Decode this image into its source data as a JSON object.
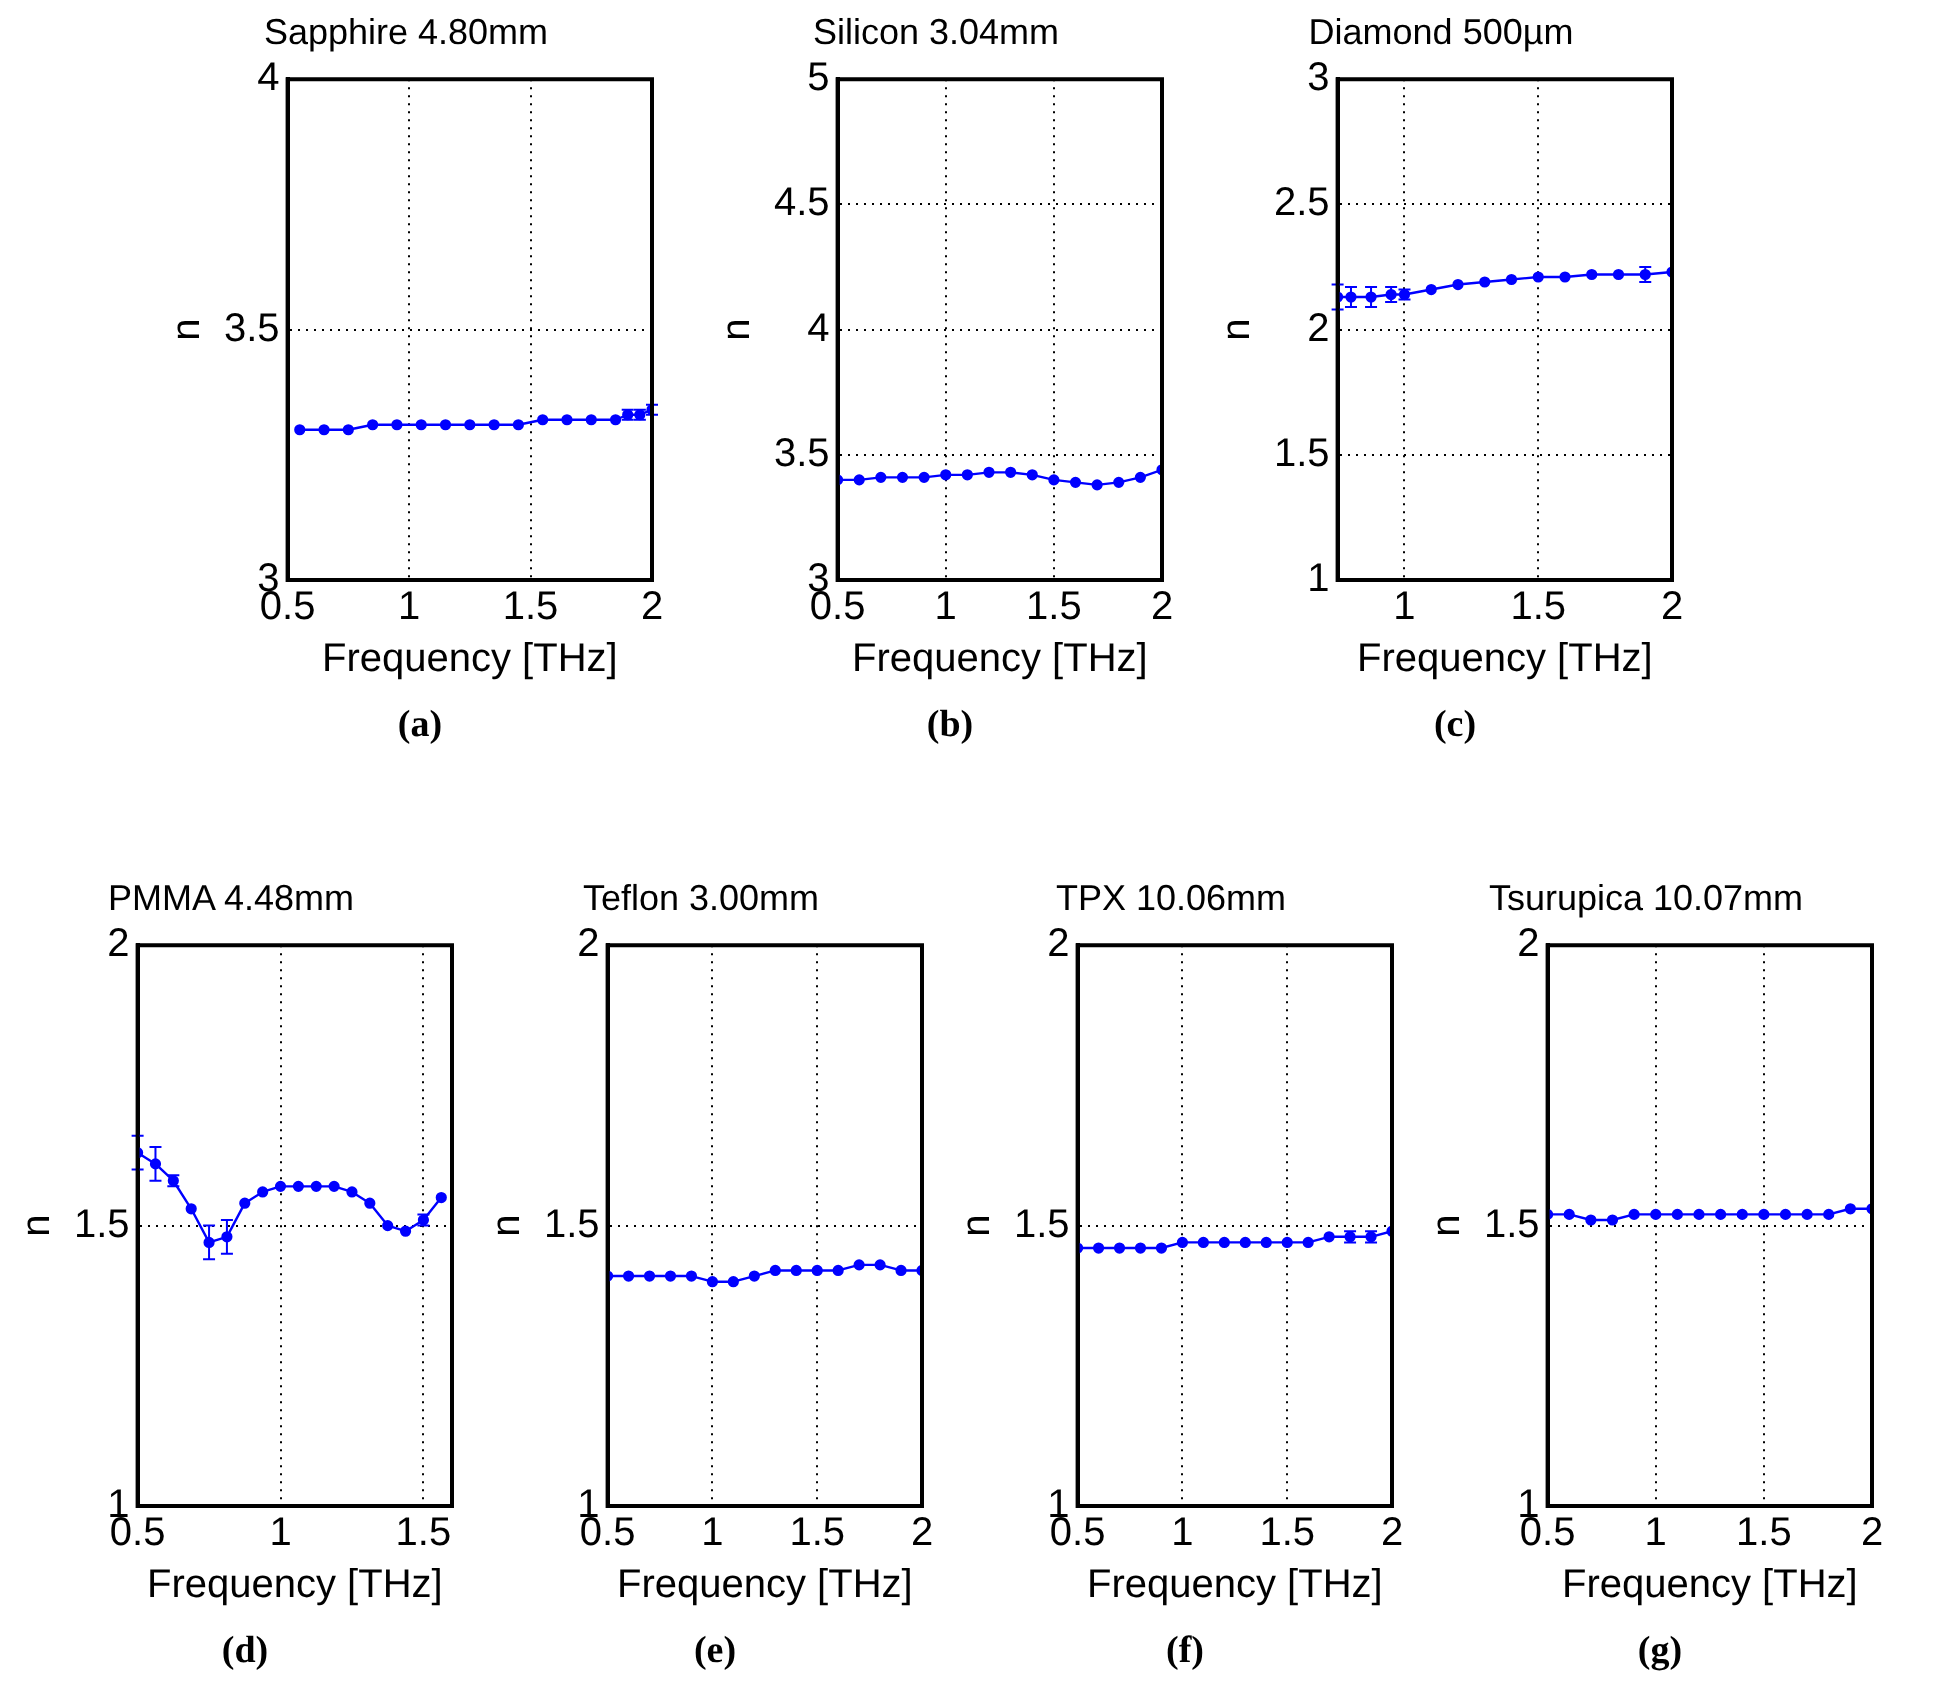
{
  "chart_data": [
    {
      "type": "line",
      "title": "Sapphire 4.80mm",
      "xlabel": "Frequency [THz]",
      "ylabel": "n",
      "annotations": [
        "(a)"
      ],
      "xlim": [
        0.5,
        2
      ],
      "xticks": [
        0.5,
        1,
        1.5,
        2
      ],
      "ylim": [
        3,
        4
      ],
      "yticks": [
        3,
        3.5,
        4
      ],
      "grid": true,
      "legend": false,
      "marker": "circle",
      "series": [
        {
          "color": "#0000ff",
          "x": [
            0.55,
            0.65,
            0.75,
            0.85,
            0.95,
            1.05,
            1.15,
            1.25,
            1.35,
            1.45,
            1.55,
            1.65,
            1.75,
            1.85,
            1.9,
            1.95,
            2.0
          ],
          "values": [
            3.3,
            3.3,
            3.3,
            3.31,
            3.31,
            3.31,
            3.31,
            3.31,
            3.31,
            3.31,
            3.32,
            3.32,
            3.32,
            3.32,
            3.33,
            3.33,
            3.34
          ],
          "errors": [
            null,
            null,
            null,
            null,
            null,
            null,
            null,
            null,
            null,
            null,
            null,
            null,
            null,
            null,
            0.01,
            0.01,
            0.01
          ]
        }
      ]
    },
    {
      "type": "line",
      "title": "Silicon 3.04mm",
      "xlabel": "Frequency [THz]",
      "ylabel": "n",
      "annotations": [
        "(b)"
      ],
      "xlim": [
        0.5,
        2
      ],
      "xticks": [
        0.5,
        1,
        1.5,
        2
      ],
      "ylim": [
        3,
        5
      ],
      "yticks": [
        3,
        3.5,
        4,
        4.5,
        5
      ],
      "grid": true,
      "legend": false,
      "marker": "circle",
      "series": [
        {
          "color": "#0000ff",
          "x": [
            0.5,
            0.6,
            0.7,
            0.8,
            0.9,
            1.0,
            1.1,
            1.2,
            1.3,
            1.4,
            1.5,
            1.6,
            1.7,
            1.8,
            1.9,
            2.0
          ],
          "values": [
            3.4,
            3.4,
            3.41,
            3.41,
            3.41,
            3.42,
            3.42,
            3.43,
            3.43,
            3.42,
            3.4,
            3.39,
            3.38,
            3.39,
            3.41,
            3.44
          ]
        }
      ]
    },
    {
      "type": "line",
      "title": "Diamond 500µm",
      "xlabel": "Frequency [THz]",
      "ylabel": "n",
      "annotations": [
        "(c)"
      ],
      "xlim": [
        0.75,
        2
      ],
      "xticks": [
        1,
        1.5,
        2
      ],
      "ylim": [
        1,
        3
      ],
      "yticks": [
        1,
        1.5,
        2,
        2.5,
        3
      ],
      "grid": true,
      "legend": false,
      "marker": "circle",
      "series": [
        {
          "color": "#0000ff",
          "x": [
            0.75,
            0.8,
            0.875,
            0.95,
            1.0,
            1.1,
            1.2,
            1.3,
            1.4,
            1.5,
            1.6,
            1.7,
            1.8,
            1.9,
            2.0
          ],
          "values": [
            2.13,
            2.13,
            2.13,
            2.14,
            2.14,
            2.16,
            2.18,
            2.19,
            2.2,
            2.21,
            2.21,
            2.22,
            2.22,
            2.22,
            2.23
          ],
          "errors": [
            0.05,
            0.04,
            0.04,
            0.03,
            0.02,
            null,
            null,
            null,
            null,
            null,
            null,
            null,
            null,
            0.03,
            null
          ]
        }
      ]
    },
    {
      "type": "line",
      "title": "PMMA 4.48mm",
      "xlabel": "Frequency [THz]",
      "ylabel": "n",
      "annotations": [
        "(d)"
      ],
      "xlim": [
        0.5,
        1.6
      ],
      "xticks": [
        0.5,
        1,
        1.5
      ],
      "ylim": [
        1,
        2
      ],
      "yticks": [
        1,
        1.5,
        2
      ],
      "grid": true,
      "legend": false,
      "marker": "circle",
      "series": [
        {
          "color": "#0000ff",
          "x": [
            0.5,
            0.5625,
            0.625,
            0.6875,
            0.75,
            0.8125,
            0.875,
            0.9375,
            1.0,
            1.0625,
            1.125,
            1.1875,
            1.25,
            1.3125,
            1.375,
            1.4375,
            1.5,
            1.5625
          ],
          "values": [
            1.63,
            1.61,
            1.58,
            1.53,
            1.47,
            1.48,
            1.54,
            1.56,
            1.57,
            1.57,
            1.57,
            1.57,
            1.56,
            1.54,
            1.5,
            1.49,
            1.51,
            1.55
          ],
          "errors": [
            0.03,
            0.03,
            0.01,
            null,
            0.03,
            0.03,
            null,
            null,
            null,
            null,
            null,
            null,
            null,
            null,
            null,
            null,
            0.01,
            null
          ]
        }
      ]
    },
    {
      "type": "line",
      "title": "Teflon 3.00mm",
      "xlabel": "Frequency [THz]",
      "ylabel": "n",
      "annotations": [
        "(e)"
      ],
      "xlim": [
        0.5,
        2
      ],
      "xticks": [
        0.5,
        1,
        1.5,
        2
      ],
      "ylim": [
        1,
        2
      ],
      "yticks": [
        1,
        1.5,
        2
      ],
      "grid": true,
      "legend": false,
      "marker": "circle",
      "series": [
        {
          "color": "#0000ff",
          "x": [
            0.5,
            0.6,
            0.7,
            0.8,
            0.9,
            1.0,
            1.1,
            1.2,
            1.3,
            1.4,
            1.5,
            1.6,
            1.7,
            1.8,
            1.9,
            2.0
          ],
          "values": [
            1.41,
            1.41,
            1.41,
            1.41,
            1.41,
            1.4,
            1.4,
            1.41,
            1.42,
            1.42,
            1.42,
            1.42,
            1.43,
            1.43,
            1.42,
            1.42
          ]
        }
      ]
    },
    {
      "type": "line",
      "title": "TPX 10.06mm",
      "xlabel": "Frequency [THz]",
      "ylabel": "n",
      "annotations": [
        "(f)"
      ],
      "xlim": [
        0.5,
        2
      ],
      "xticks": [
        0.5,
        1,
        1.5,
        2
      ],
      "ylim": [
        1,
        2
      ],
      "yticks": [
        1,
        1.5,
        2
      ],
      "grid": true,
      "legend": false,
      "marker": "circle",
      "series": [
        {
          "color": "#0000ff",
          "x": [
            0.5,
            0.6,
            0.7,
            0.8,
            0.9,
            1.0,
            1.1,
            1.2,
            1.3,
            1.4,
            1.5,
            1.6,
            1.7,
            1.8,
            1.9,
            2.0
          ],
          "values": [
            1.46,
            1.46,
            1.46,
            1.46,
            1.46,
            1.47,
            1.47,
            1.47,
            1.47,
            1.47,
            1.47,
            1.47,
            1.48,
            1.48,
            1.48,
            1.49
          ],
          "errors": [
            null,
            null,
            null,
            null,
            null,
            null,
            null,
            null,
            null,
            null,
            null,
            null,
            null,
            0.01,
            0.01,
            null
          ]
        }
      ]
    },
    {
      "type": "line",
      "title": "Tsurupica 10.07mm",
      "xlabel": "Frequency [THz]",
      "ylabel": "n",
      "annotations": [
        "(g)"
      ],
      "xlim": [
        0.5,
        2
      ],
      "xticks": [
        0.5,
        1,
        1.5,
        2
      ],
      "ylim": [
        1,
        2
      ],
      "yticks": [
        1,
        1.5,
        2
      ],
      "grid": true,
      "legend": false,
      "marker": "circle",
      "series": [
        {
          "color": "#0000ff",
          "x": [
            0.5,
            0.6,
            0.7,
            0.8,
            0.9,
            1.0,
            1.1,
            1.2,
            1.3,
            1.4,
            1.5,
            1.6,
            1.7,
            1.8,
            1.9,
            2.0
          ],
          "values": [
            1.52,
            1.52,
            1.51,
            1.51,
            1.52,
            1.52,
            1.52,
            1.52,
            1.52,
            1.52,
            1.52,
            1.52,
            1.52,
            1.52,
            1.53,
            1.53
          ]
        }
      ]
    }
  ]
}
